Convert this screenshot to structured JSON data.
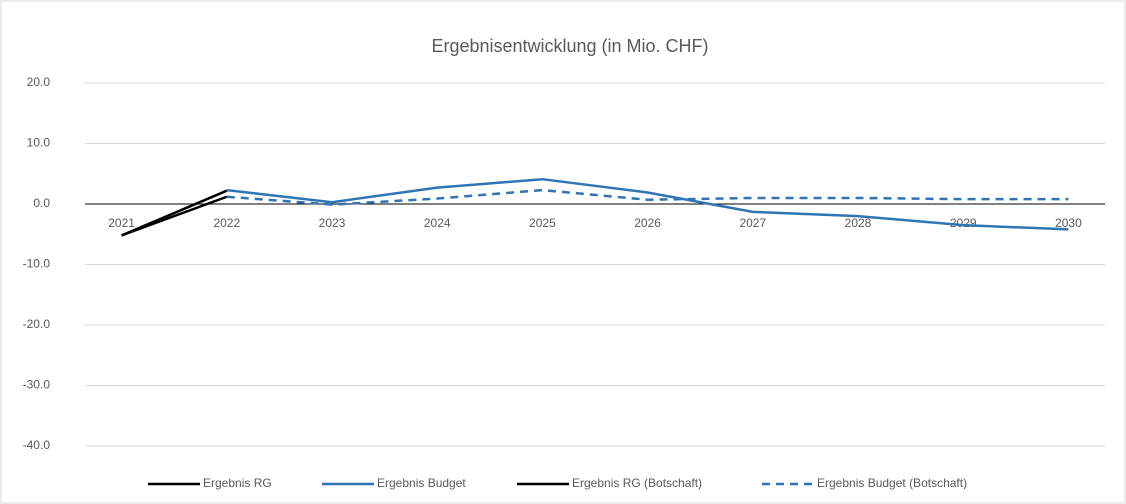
{
  "chart_data": {
    "type": "line",
    "title": "Ergebnisentwicklung (in Mio. CHF)",
    "categories": [
      "2021",
      "2022",
      "2023",
      "2024",
      "2025",
      "2026",
      "2027",
      "2028",
      "2029",
      "2030"
    ],
    "series": [
      {
        "name": "Ergebnis RG",
        "color": "#000000",
        "dashed": false,
        "values": [
          -5.2,
          2.2,
          null,
          null,
          null,
          null,
          null,
          null,
          null,
          null
        ]
      },
      {
        "name": "Ergebnis Budget",
        "color": "#2e75b6",
        "dashed": false,
        "values": [
          null,
          2.3,
          0.3,
          2.7,
          4.1,
          1.9,
          -1.3,
          -2.0,
          -3.5,
          -4.2
        ]
      },
      {
        "name": "Ergebnis RG (Botschaft)",
        "color": "#000000",
        "dashed": false,
        "values": [
          -5.2,
          1.2,
          null,
          null,
          null,
          null,
          null,
          null,
          null,
          null
        ]
      },
      {
        "name": "Ergebnis Budget (Botschaft)",
        "color": "#2e75b6",
        "dashed": true,
        "values": [
          null,
          1.2,
          -0.1,
          0.9,
          2.3,
          0.7,
          1.0,
          1.0,
          0.8,
          0.8
        ]
      }
    ],
    "ylim": [
      -40,
      20
    ],
    "yticks": [
      {
        "value": -40,
        "label": "-40.0"
      },
      {
        "value": -30,
        "label": "-30.0"
      },
      {
        "value": -20,
        "label": "-20.0"
      },
      {
        "value": -10,
        "label": "-10.0"
      },
      {
        "value": 0,
        "label": "0.0"
      },
      {
        "value": 10,
        "label": "10.0"
      },
      {
        "value": 20,
        "label": "20.0"
      }
    ],
    "grid": true,
    "legend": "bottom"
  }
}
